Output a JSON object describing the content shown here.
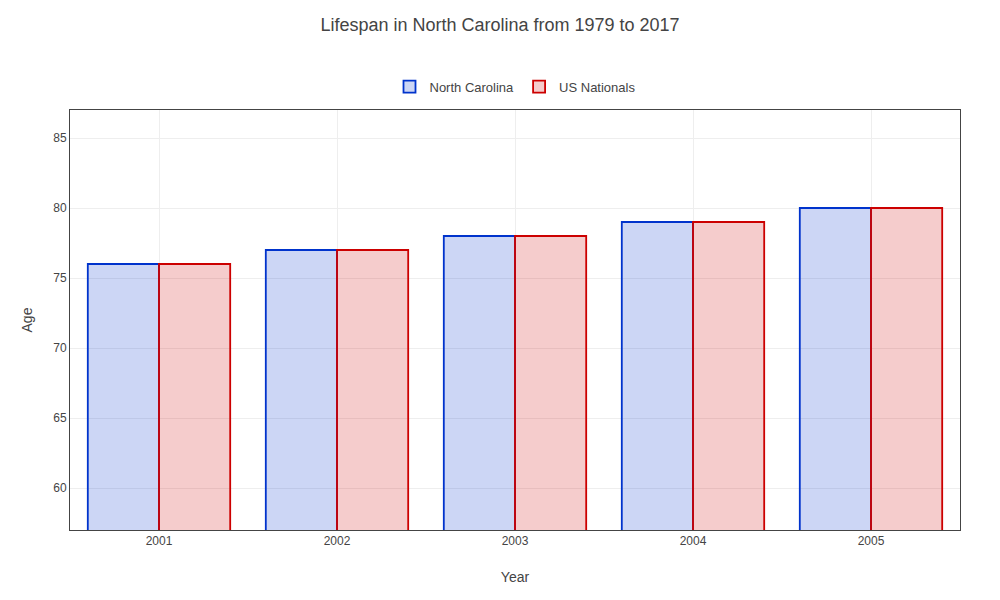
{
  "chart_data": {
    "type": "bar",
    "title": "Lifespan in North Carolina from 1979 to 2017",
    "xlabel": "Year",
    "ylabel": "Age",
    "categories": [
      "2001",
      "2002",
      "2003",
      "2004",
      "2005"
    ],
    "series": [
      {
        "name": "North Carolina",
        "color": "#0033cc",
        "values": [
          76,
          77,
          78,
          79,
          80
        ]
      },
      {
        "name": "US Nationals",
        "color": "#cc0000",
        "values": [
          76,
          77,
          78,
          79,
          80
        ]
      }
    ],
    "ylim": [
      57,
      87
    ],
    "yticks": [
      60,
      65,
      70,
      75,
      80,
      85
    ],
    "grid": true,
    "legend": "top"
  }
}
